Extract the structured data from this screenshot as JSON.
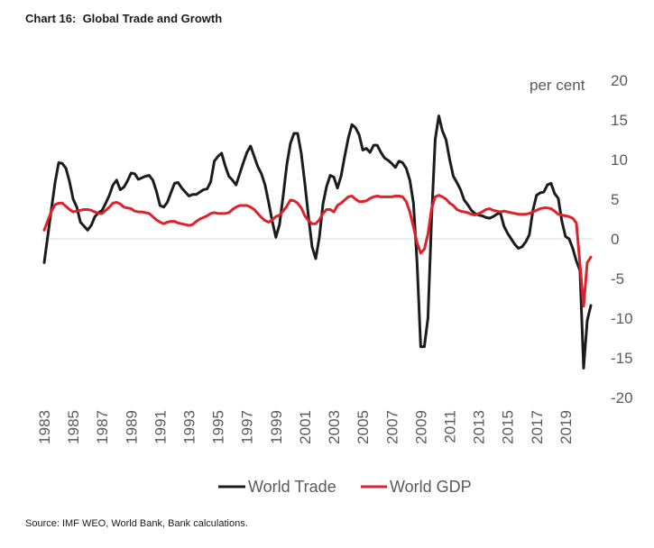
{
  "title": "Chart 16:  Global Trade and Growth",
  "source": "Source: IMF WEO, World Bank, Bank calculations.",
  "chart_data": {
    "type": "line",
    "title": "Chart 16:  Global Trade and Growth",
    "xlabel": "",
    "ylabel": "per cent",
    "y_axis_side": "right",
    "ylim": [
      -20,
      20
    ],
    "y_ticks": [
      20,
      15,
      10,
      5,
      0,
      -5,
      -10,
      -15,
      -20
    ],
    "y_tick_labels": [
      "20",
      "15",
      "10",
      "5",
      "0",
      "-5",
      "-10",
      "-15",
      "-20"
    ],
    "x_tick_labels": [
      "1983",
      "1985",
      "1987",
      "1989",
      "1991",
      "1993",
      "1995",
      "1997",
      "1999",
      "2001",
      "2003",
      "2005",
      "2007",
      "2009",
      "2011",
      "2013",
      "2015",
      "2017",
      "2019"
    ],
    "grid": "zero line only",
    "legend_position": "bottom",
    "frequency": "quarterly",
    "x": [
      "1983Q1",
      "1983Q2",
      "1983Q3",
      "1983Q4",
      "1984Q1",
      "1984Q2",
      "1984Q3",
      "1984Q4",
      "1985Q1",
      "1985Q2",
      "1985Q3",
      "1985Q4",
      "1986Q1",
      "1986Q2",
      "1986Q3",
      "1986Q4",
      "1987Q1",
      "1987Q2",
      "1987Q3",
      "1987Q4",
      "1988Q1",
      "1988Q2",
      "1988Q3",
      "1988Q4",
      "1989Q1",
      "1989Q2",
      "1989Q3",
      "1989Q4",
      "1990Q1",
      "1990Q2",
      "1990Q3",
      "1990Q4",
      "1991Q1",
      "1991Q2",
      "1991Q3",
      "1991Q4",
      "1992Q1",
      "1992Q2",
      "1992Q3",
      "1992Q4",
      "1993Q1",
      "1993Q2",
      "1993Q3",
      "1993Q4",
      "1994Q1",
      "1994Q2",
      "1994Q3",
      "1994Q4",
      "1995Q1",
      "1995Q2",
      "1995Q3",
      "1995Q4",
      "1996Q1",
      "1996Q2",
      "1996Q3",
      "1996Q4",
      "1997Q1",
      "1997Q2",
      "1997Q3",
      "1997Q4",
      "1998Q1",
      "1998Q2",
      "1998Q3",
      "1998Q4",
      "1999Q1",
      "1999Q2",
      "1999Q3",
      "1999Q4",
      "2000Q1",
      "2000Q2",
      "2000Q3",
      "2000Q4",
      "2001Q1",
      "2001Q2",
      "2001Q3",
      "2001Q4",
      "2002Q1",
      "2002Q2",
      "2002Q3",
      "2002Q4",
      "2003Q1",
      "2003Q2",
      "2003Q3",
      "2003Q4",
      "2004Q1",
      "2004Q2",
      "2004Q3",
      "2004Q4",
      "2005Q1",
      "2005Q2",
      "2005Q3",
      "2005Q4",
      "2006Q1",
      "2006Q2",
      "2006Q3",
      "2006Q4",
      "2007Q1",
      "2007Q2",
      "2007Q3",
      "2007Q4",
      "2008Q1",
      "2008Q2",
      "2008Q3",
      "2008Q4",
      "2009Q1",
      "2009Q2",
      "2009Q3",
      "2009Q4",
      "2010Q1",
      "2010Q2",
      "2010Q3",
      "2010Q4",
      "2011Q1",
      "2011Q2",
      "2011Q3",
      "2011Q4",
      "2012Q1",
      "2012Q2",
      "2012Q3",
      "2012Q4",
      "2013Q1",
      "2013Q2",
      "2013Q3",
      "2013Q4",
      "2014Q1",
      "2014Q2",
      "2014Q3",
      "2014Q4",
      "2015Q1",
      "2015Q2",
      "2015Q3",
      "2015Q4",
      "2016Q1",
      "2016Q2",
      "2016Q3",
      "2016Q4",
      "2017Q1",
      "2017Q2",
      "2017Q3",
      "2017Q4",
      "2018Q1",
      "2018Q2",
      "2018Q3",
      "2018Q4",
      "2019Q1",
      "2019Q2",
      "2019Q3",
      "2019Q4",
      "2020Q1",
      "2020Q2",
      "2020Q3",
      "2020Q4"
    ],
    "series": [
      {
        "name": "World Trade",
        "color": "#1c1c1c",
        "values": [
          -3.0,
          0.4,
          3.8,
          7.1,
          9.6,
          9.5,
          8.9,
          7.2,
          5.0,
          4.0,
          2.1,
          1.6,
          1.1,
          1.7,
          2.8,
          3.3,
          3.6,
          4.5,
          5.5,
          6.8,
          7.4,
          6.2,
          6.5,
          7.3,
          8.3,
          8.2,
          7.5,
          7.7,
          7.9,
          8.0,
          7.4,
          6.0,
          4.2,
          4.0,
          4.6,
          5.8,
          7.0,
          7.1,
          6.4,
          5.9,
          5.4,
          5.6,
          5.6,
          5.9,
          6.2,
          6.3,
          7.2,
          9.8,
          10.4,
          10.8,
          9.2,
          7.9,
          7.4,
          6.8,
          8.2,
          9.6,
          10.9,
          11.7,
          10.4,
          9.1,
          8.2,
          6.8,
          4.6,
          2.2,
          0.2,
          1.8,
          5.4,
          9.3,
          12.0,
          13.3,
          13.3,
          10.8,
          7.0,
          2.8,
          -1.0,
          -2.5,
          0.2,
          4.4,
          6.6,
          8.0,
          7.8,
          6.4,
          7.9,
          10.4,
          12.7,
          14.4,
          14.0,
          13.1,
          11.2,
          11.4,
          10.9,
          11.8,
          11.8,
          10.9,
          10.2,
          9.9,
          9.5,
          9.0,
          9.8,
          9.6,
          8.9,
          7.4,
          4.5,
          -3.0,
          -13.6,
          -13.6,
          -10.0,
          2.5,
          12.5,
          15.5,
          13.6,
          12.5,
          10.0,
          7.9,
          7.1,
          6.2,
          4.9,
          4.3,
          3.6,
          3.2,
          3.0,
          2.9,
          2.7,
          2.6,
          2.8,
          3.1,
          3.3,
          1.6,
          0.7,
          0.0,
          -0.7,
          -1.2,
          -1.0,
          -0.4,
          0.5,
          3.6,
          5.5,
          5.8,
          5.9,
          6.8,
          7.0,
          5.7,
          5.1,
          2.2,
          0.3,
          0.0,
          -1.2,
          -2.8,
          -4.0,
          -16.3,
          -10.3,
          -8.4
        ]
      },
      {
        "name": "World GDP",
        "color": "#e0202a",
        "values": [
          1.1,
          2.3,
          3.5,
          4.3,
          4.5,
          4.5,
          4.1,
          3.7,
          3.4,
          3.5,
          3.6,
          3.7,
          3.7,
          3.6,
          3.4,
          3.2,
          3.2,
          3.6,
          4.0,
          4.5,
          4.6,
          4.4,
          4.0,
          3.9,
          3.8,
          3.5,
          3.4,
          3.4,
          3.3,
          3.2,
          2.8,
          2.4,
          2.1,
          1.9,
          2.1,
          2.2,
          2.2,
          2.0,
          1.9,
          1.8,
          1.7,
          1.8,
          2.2,
          2.5,
          2.7,
          2.9,
          3.2,
          3.3,
          3.2,
          3.2,
          3.2,
          3.3,
          3.7,
          4.0,
          4.2,
          4.2,
          4.2,
          4.0,
          3.7,
          3.2,
          2.7,
          2.3,
          2.1,
          2.4,
          2.8,
          3.0,
          3.5,
          4.1,
          4.9,
          4.8,
          4.5,
          3.9,
          2.9,
          2.3,
          1.9,
          1.9,
          2.4,
          3.2,
          3.7,
          3.7,
          3.4,
          4.2,
          4.5,
          4.9,
          5.3,
          5.4,
          5.0,
          4.7,
          4.7,
          4.8,
          5.1,
          5.3,
          5.4,
          5.3,
          5.3,
          5.3,
          5.3,
          5.4,
          5.4,
          5.3,
          4.7,
          3.4,
          1.5,
          -0.5,
          -1.8,
          -1.3,
          0.6,
          3.8,
          5.3,
          5.5,
          5.3,
          5.0,
          4.5,
          4.2,
          3.7,
          3.5,
          3.4,
          3.3,
          3.1,
          3.0,
          3.2,
          3.4,
          3.7,
          3.8,
          3.6,
          3.5,
          3.4,
          3.5,
          3.4,
          3.3,
          3.2,
          3.1,
          3.1,
          3.1,
          3.2,
          3.4,
          3.6,
          3.8,
          3.9,
          3.9,
          3.8,
          3.5,
          3.1,
          3.0,
          2.9,
          2.8,
          2.6,
          2.0,
          -3.2,
          -8.5,
          -3.0,
          -2.3
        ]
      }
    ]
  }
}
